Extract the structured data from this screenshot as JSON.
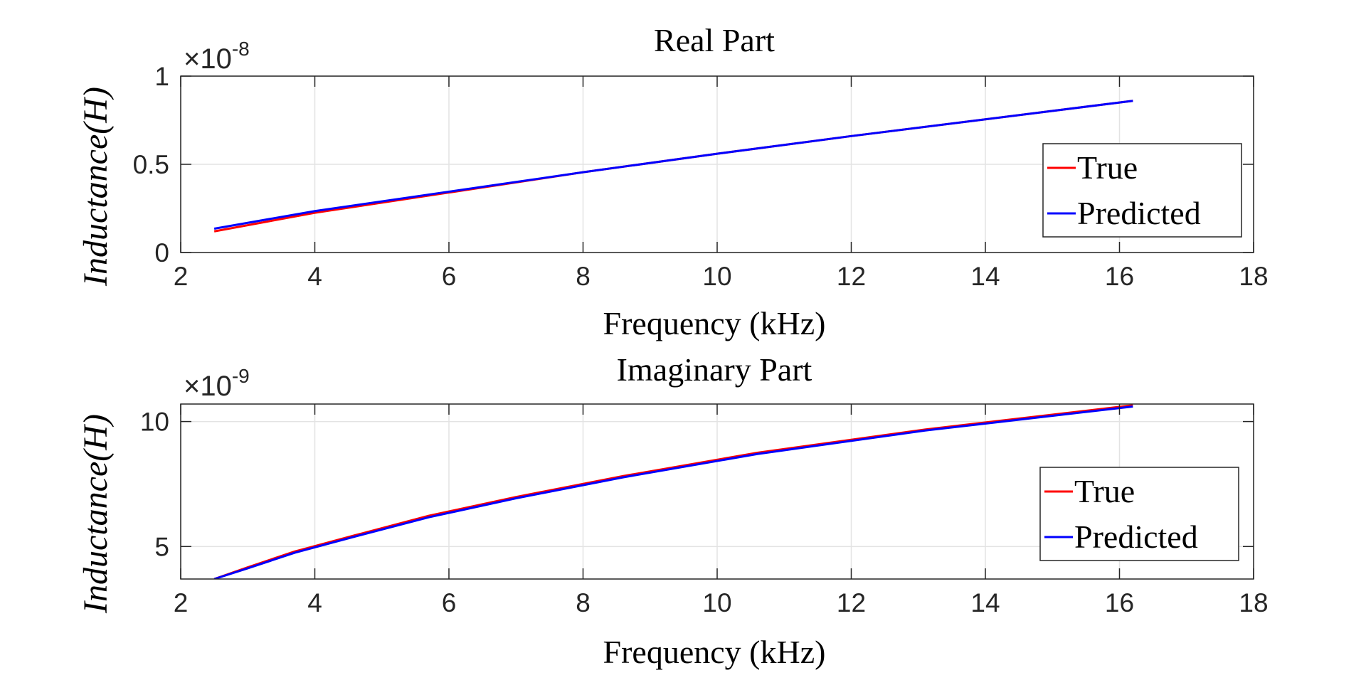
{
  "chart_data": [
    {
      "type": "line",
      "title": "Real Part",
      "xlabel": "Frequency (kHz)",
      "ylabel": "Inductance(H)",
      "exponent_prefix": "×10",
      "exponent_power": "-8",
      "xlim": [
        2,
        18
      ],
      "ylim": [
        0,
        1
      ],
      "xticks": [
        2,
        4,
        6,
        8,
        10,
        12,
        14,
        16,
        18
      ],
      "xtick_labels": [
        "2",
        "4",
        "6",
        "8",
        "10",
        "12",
        "14",
        "16",
        "18"
      ],
      "yticks": [
        0,
        0.5,
        1
      ],
      "ytick_labels": [
        "0",
        "0.5",
        "1"
      ],
      "grid": true,
      "legend_position": "right",
      "series": [
        {
          "name": "True",
          "color": "#ff0000",
          "x": [
            2.5,
            4,
            6,
            8,
            10,
            12,
            14,
            16.2
          ],
          "y": [
            0.12,
            0.225,
            0.34,
            0.455,
            0.56,
            0.66,
            0.755,
            0.86
          ]
        },
        {
          "name": "Predicted",
          "color": "#0000ff",
          "x": [
            2.5,
            4,
            6,
            8,
            10,
            12,
            14,
            16.2
          ],
          "y": [
            0.135,
            0.235,
            0.345,
            0.455,
            0.56,
            0.66,
            0.755,
            0.86
          ]
        }
      ]
    },
    {
      "type": "line",
      "title": "Imaginary Part",
      "xlabel": "Frequency (kHz)",
      "ylabel": "Inductance(H)",
      "exponent_prefix": "×10",
      "exponent_power": "-9",
      "xlim": [
        2,
        18
      ],
      "ylim": [
        3.7,
        10.7
      ],
      "xticks": [
        2,
        4,
        6,
        8,
        10,
        12,
        14,
        16,
        18
      ],
      "xtick_labels": [
        "2",
        "4",
        "6",
        "8",
        "10",
        "12",
        "14",
        "16",
        "18"
      ],
      "yticks": [
        5,
        10
      ],
      "ytick_labels": [
        "5",
        "10"
      ],
      "grid": true,
      "legend_position": "right",
      "series": [
        {
          "name": "True",
          "color": "#ff0000",
          "x": [
            2.5,
            3,
            3.7,
            4.6,
            5.7,
            7,
            8.6,
            10.6,
            13.1,
            16.2
          ],
          "y": [
            3.7,
            4.17,
            4.8,
            5.45,
            6.23,
            6.98,
            7.82,
            8.75,
            9.68,
            10.65
          ]
        },
        {
          "name": "Predicted",
          "color": "#0000ff",
          "x": [
            2.5,
            3,
            3.7,
            4.6,
            5.7,
            7,
            8.6,
            10.6,
            13.1,
            16.2
          ],
          "y": [
            3.7,
            4.13,
            4.75,
            5.4,
            6.17,
            6.93,
            7.77,
            8.7,
            9.64,
            10.6
          ]
        }
      ]
    }
  ]
}
